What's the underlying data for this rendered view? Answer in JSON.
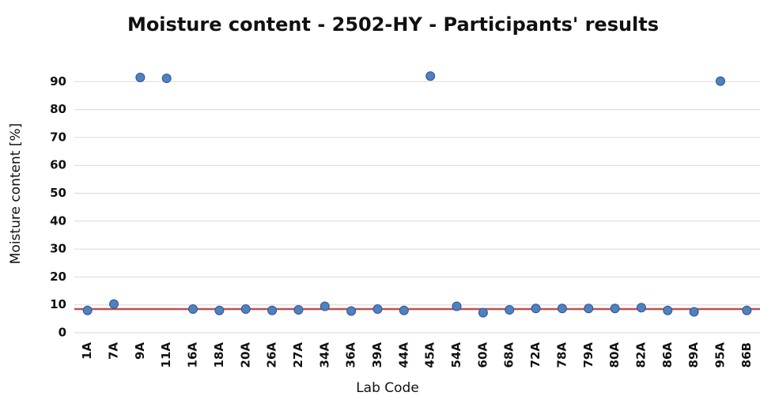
{
  "chart_data": {
    "type": "scatter",
    "title": "Moisture content - 2502-HY -  Participants' results",
    "x_label": "Lab Code",
    "y_label": "Moisture content [%]",
    "categories": [
      "1A",
      "7A",
      "9A",
      "11A",
      "16A",
      "18A",
      "20A",
      "26A",
      "27A",
      "34A",
      "36A",
      "39A",
      "44A",
      "45A",
      "54A",
      "60A",
      "68A",
      "72A",
      "78A",
      "79A",
      "80A",
      "82A",
      "86A",
      "89A",
      "95A",
      "86B"
    ],
    "values": [
      8,
      10.3,
      91.5,
      91.2,
      8.5,
      8,
      8.5,
      8,
      8.2,
      9.5,
      7.8,
      8.5,
      8,
      92,
      9.5,
      7.2,
      8.2,
      8.7,
      8.7,
      8.7,
      8.7,
      9,
      8,
      7.5,
      90.2,
      8
    ],
    "color": "#4f81bd",
    "reference_value": 8.5,
    "reference_color": "#c0504d",
    "ylim": [
      0,
      100
    ],
    "yticks": [
      0,
      10,
      20,
      30,
      40,
      50,
      60,
      70,
      80,
      90
    ],
    "grid": true
  }
}
